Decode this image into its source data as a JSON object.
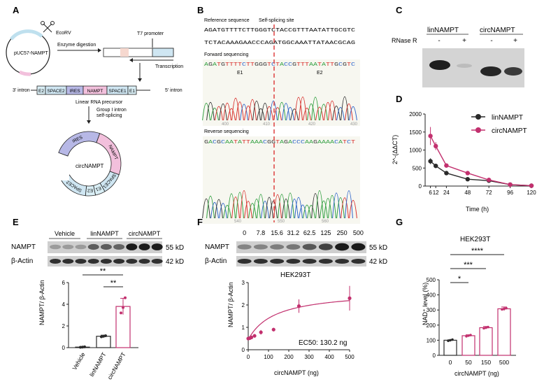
{
  "colors": {
    "pink": "#c2306e",
    "black": "#2a2a2a",
    "ire": "#b7b8e6",
    "nampt": "#f2c0dc",
    "space": "#cfe6f2",
    "e": "#d9eef5",
    "gelbg": "#d4d4d4"
  },
  "panel_A": {
    "label": "A",
    "plasmid": "pUC57-NAMPT",
    "ecorv": "EcoRV",
    "t7": "T7 promoter",
    "enzyme": "Enzyme digestion",
    "transcription": "Transcription",
    "intron3": "3' intron",
    "intron5": "5' intron",
    "segments": [
      "E2",
      "SPACE2",
      "IRES",
      "NAMPT",
      "SPACE1",
      "E1"
    ],
    "precursor": "Linear RNA precursor",
    "splice_line1": "Group I intron",
    "splice_line2": "self-splicing",
    "circ_label": "circNAMPT",
    "ring_labels": [
      "IRES",
      "NAMPT",
      "SPACE1",
      "E1",
      "E2",
      "SPACE2"
    ]
  },
  "panel_B": {
    "label": "B",
    "ref_title": "Reference sequence",
    "site_title": "Self-splicing site",
    "ref_seq1": "AGATGTTTTCTTGGGTCTACCGTTTAATATTGCGTC",
    "ref_seq2": "TCTACAAAGAACCCAGATGGCAAATTATAACGCAG",
    "fwd_title": "Forward sequencing",
    "fwd_seq": "AGATGTTTTCTTGGGTCTACCGTTTAATATTGCGTC",
    "e1": "E1",
    "e2": "E2",
    "fwd_ticks": [
      "400",
      "410",
      "420",
      "430"
    ],
    "rev_title": "Reverse sequencing",
    "rev_seq": "GACGCAATATTAAACGGTAGACCCAAGAAAACATCT",
    "rev_ticks": [
      "540",
      "550",
      "560"
    ]
  },
  "panel_C": {
    "label": "C",
    "group1": "linNAMPT",
    "group2": "circNAMPT",
    "rnase": "RNase R",
    "signs": [
      "-",
      "+",
      "-",
      "+"
    ]
  },
  "panel_D": {
    "label": "D",
    "chart_data": {
      "type": "line",
      "xlabel": "Time (h)",
      "ylabel": "2^-(ΔΔCT)",
      "x": [
        6,
        12,
        24,
        48,
        72,
        96,
        120
      ],
      "xticks": [
        "6",
        "12",
        "24",
        "48",
        "72",
        "96",
        "120"
      ],
      "ylim": [
        0,
        2000
      ],
      "yticks": [
        "0",
        "500",
        "1000",
        "1500",
        "2000"
      ],
      "series": [
        {
          "name": "linNAMPT",
          "color": "#2a2a2a",
          "values": [
            690,
            560,
            360,
            190,
            150,
            40,
            10
          ],
          "err": [
            80,
            60,
            30,
            20,
            20,
            10,
            5
          ]
        },
        {
          "name": "circNAMPT",
          "color": "#c2306e",
          "values": [
            1390,
            1110,
            570,
            360,
            170,
            40,
            10
          ],
          "err": [
            250,
            110,
            40,
            30,
            20,
            10,
            5
          ]
        }
      ]
    }
  },
  "panel_E": {
    "label": "E",
    "groups": [
      "Vehicle",
      "linNAMPT",
      "circNAMPT"
    ],
    "rows": [
      "NAMPT",
      "β-Actin"
    ],
    "kd": [
      "55 kD",
      "42 kD"
    ],
    "sig_top": "**",
    "sig_bottom": "**",
    "chart_data": {
      "type": "bar",
      "categories": [
        "Vehicle",
        "linNAMPT",
        "circNAMPT"
      ],
      "values": [
        0.05,
        1.05,
        3.8
      ],
      "err": [
        0.02,
        0.1,
        0.75
      ],
      "points": [
        [
          0.03,
          0.05,
          0.07
        ],
        [
          1.0,
          1.05,
          1.1
        ],
        [
          3.2,
          3.7,
          4.6
        ]
      ],
      "ylabel": "NAMPT/ β-Actin",
      "ylim": [
        0,
        6
      ],
      "yticks": [
        "0",
        "2",
        "4",
        "6"
      ]
    }
  },
  "panel_F": {
    "label": "F",
    "doses": [
      "0",
      "7.8",
      "15.6",
      "31.2",
      "62.5",
      "125",
      "250",
      "500"
    ],
    "rows": [
      "NAMPT",
      "β-Actin"
    ],
    "kd": [
      "55 kD",
      "42 kD"
    ],
    "cell": "HEK293T",
    "ec50": "EC50: 130.2 ng",
    "chart_data": {
      "type": "scatter",
      "x": [
        0,
        7.8,
        15.6,
        31.2,
        62.5,
        125,
        250,
        500
      ],
      "y": [
        0.5,
        0.52,
        0.55,
        0.62,
        0.78,
        0.9,
        1.95,
        2.3
      ],
      "err": [
        0.08,
        0.08,
        0.08,
        0.08,
        0.1,
        0.08,
        0.3,
        0.55
      ],
      "xlabel": "circNAMPT (ng)",
      "ylabel": "NAMPT/ β-Actin",
      "xlim": [
        0,
        500
      ],
      "ylim": [
        0,
        3
      ],
      "xticks": [
        "0",
        "100",
        "200",
        "300",
        "400",
        "500"
      ],
      "yticks": [
        "0",
        "1",
        "2",
        "3"
      ],
      "fit": "EC50 130.2"
    }
  },
  "panel_G": {
    "label": "G",
    "cell": "HEK293T",
    "sig": [
      "*",
      "***",
      "****"
    ],
    "chart_data": {
      "type": "bar",
      "categories": [
        "0",
        "50",
        "150",
        "500"
      ],
      "values": [
        100,
        130,
        183,
        308
      ],
      "err": [
        3,
        6,
        8,
        12
      ],
      "xlabel": "circNAMPT (ng)",
      "ylabel": "NAD⁺ level (%)",
      "ylim": [
        0,
        500
      ],
      "yticks": [
        "0",
        "100",
        "200",
        "300",
        "400",
        "500"
      ]
    }
  }
}
